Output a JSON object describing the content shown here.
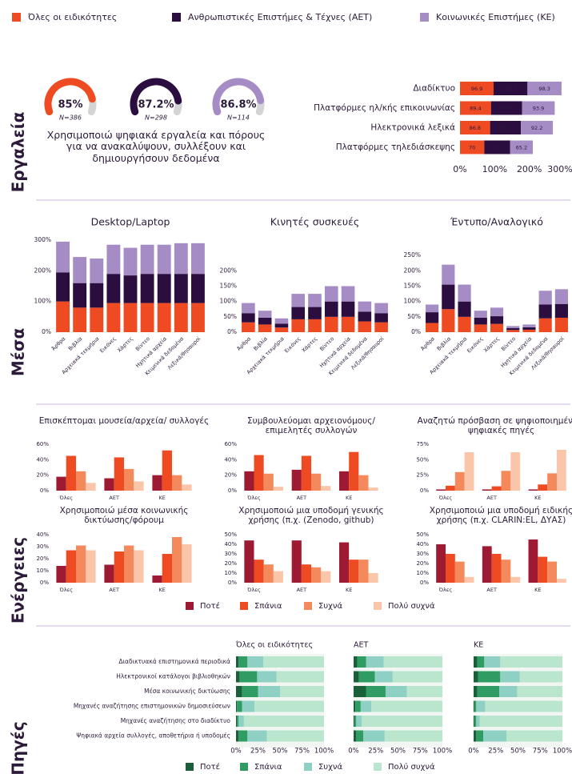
{
  "legend": [
    {
      "name": "Όλες οι ειδικότητες",
      "color": "#ef4b23"
    },
    {
      "name": "Ανθρωπιστικές Επιστήμες & Τέχνες (ΑΕΤ)",
      "color": "#2b0d40"
    },
    {
      "name": "Κοινωνικές Επιστήμες (ΚΕ)",
      "color": "#a68cc5"
    }
  ],
  "sections": [
    "Εργαλεία",
    "Μέσα",
    "Ενέργειες",
    "Πηγές"
  ],
  "frequency_legend": [
    {
      "name": "Ποτέ",
      "color": "#9e1a32"
    },
    {
      "name": "Σπάνια",
      "color": "#ef4b23"
    },
    {
      "name": "Συχνά",
      "color": "#f48a5c"
    },
    {
      "name": "Πολύ συχνά",
      "color": "#fbc5a9"
    }
  ],
  "sources_legend": [
    {
      "name": "Ποτέ",
      "color": "#1a5e3a"
    },
    {
      "name": "Σπάνια",
      "color": "#2f9d63"
    },
    {
      "name": "Συχνά",
      "color": "#8ed1c4"
    },
    {
      "name": "Πολύ συχνά",
      "color": "#b9e6cc"
    }
  ],
  "chart_data": [
    {
      "type": "gauge",
      "values": [
        85,
        87.2,
        86.8
      ],
      "value_labels": [
        "85%",
        "87.2%",
        "86.8%"
      ],
      "sample_sizes": [
        "N=386",
        "N=298",
        "N=114"
      ],
      "colors": [
        "#ef4b23",
        "#2b0d40",
        "#a68cc5"
      ],
      "ylim": [
        0,
        100
      ],
      "caption": "Χρησιμοποιώ ψηφιακά εργαλεία και πόρους για να ανακαλύψουν, συλλέξουν και δημιουργήσουν δεδομένα"
    },
    {
      "type": "stacked_hbar",
      "categories": [
        "Διαδίκτυο",
        "Πλατφόρμες ηλ/κής επικοινωνίας",
        "Ηλεκτρονικά λεξικά",
        "Πλατφόρμες τηλεδιάσκεψης"
      ],
      "series": [
        {
          "color": "#ef4b23",
          "values": [
            96.9,
            89.4,
            86.8,
            70
          ]
        },
        {
          "color": "#2b0d40",
          "values": [
            97.7,
            89.9,
            88.9,
            74.8
          ]
        },
        {
          "color": "#a68cc5",
          "values": [
            98.3,
            93.9,
            92.2,
            65.2
          ]
        }
      ],
      "xlim": [
        0,
        300
      ],
      "xticks": [
        {
          "value": 0,
          "label": "0%"
        },
        {
          "value": 100,
          "label": "100%"
        },
        {
          "value": 200,
          "label": "200%"
        },
        {
          "value": 300,
          "label": "300%"
        }
      ]
    },
    {
      "type": "stacked_column",
      "title": "Desktop/Laptop",
      "categories": [
        "Άρθρα",
        "Βιβλία",
        "Αρχειακά τεκμήρια",
        "Εικόνες",
        "Χάρτες",
        "Βίντεο",
        "Ηχητικά αρχεία",
        "Κειμενικά δεδομένα",
        "Λεξικά/θησαυροί"
      ],
      "series": [
        {
          "color": "#ef4b23",
          "values": [
            100,
            80,
            80,
            95,
            95,
            95,
            95,
            95,
            95
          ]
        },
        {
          "color": "#2b0d40",
          "values": [
            95,
            80,
            80,
            95,
            90,
            95,
            95,
            95,
            95
          ]
        },
        {
          "color": "#a68cc5",
          "values": [
            100,
            85,
            80,
            95,
            90,
            95,
            95,
            100,
            100
          ]
        }
      ],
      "ylim": [
        0,
        300
      ],
      "yticks": [
        {
          "value": 0,
          "label": "0%"
        },
        {
          "value": 100,
          "label": "100%"
        },
        {
          "value": 200,
          "label": "200%"
        },
        {
          "value": 300,
          "label": "300%"
        }
      ]
    },
    {
      "type": "stacked_column",
      "title": "Κινητές συσκευές",
      "categories": [
        "Άρθρα",
        "Βιβλία",
        "Αρχειακά τεκμήρια",
        "Εικόνες",
        "Χάρτες",
        "Βίντεο",
        "Ηχητικά αρχεία",
        "Κειμενικά δεδομένα",
        "Λεξικά/θησαυροί"
      ],
      "series": [
        {
          "color": "#ef4b23",
          "values": [
            32,
            25,
            15,
            42,
            42,
            50,
            50,
            35,
            32
          ]
        },
        {
          "color": "#2b0d40",
          "values": [
            30,
            22,
            13,
            40,
            40,
            50,
            50,
            32,
            30
          ]
        },
        {
          "color": "#a68cc5",
          "values": [
            33,
            23,
            17,
            43,
            43,
            50,
            50,
            33,
            33
          ]
        }
      ],
      "ylim": [
        0,
        300
      ],
      "yticks": [
        {
          "value": 0,
          "label": "0%"
        },
        {
          "value": 50,
          "label": "50%"
        },
        {
          "value": 100,
          "label": "100%"
        },
        {
          "value": 150,
          "label": "150%"
        },
        {
          "value": 200,
          "label": "200%"
        }
      ]
    },
    {
      "type": "stacked_column",
      "title": "Έντυπο/Αναλογικό",
      "categories": [
        "Άρθρα",
        "Βιβλία",
        "Αρχειακά τεκμήρια",
        "Εικόνες",
        "Χάρτες",
        "Βίντεο",
        "Ηχητικά αρχεία",
        "Κειμενικά δεδομένα",
        "Λεξικά/θησαυροί"
      ],
      "series": [
        {
          "color": "#ef4b23",
          "values": [
            30,
            75,
            50,
            25,
            27,
            7,
            8,
            45,
            47
          ]
        },
        {
          "color": "#2b0d40",
          "values": [
            35,
            80,
            50,
            22,
            25,
            6,
            8,
            45,
            45
          ]
        },
        {
          "color": "#a68cc5",
          "values": [
            25,
            65,
            55,
            23,
            28,
            7,
            9,
            45,
            48
          ]
        }
      ],
      "ylim": [
        0,
        300
      ],
      "yticks": [
        {
          "value": 0,
          "label": "0%"
        },
        {
          "value": 50,
          "label": "50%"
        },
        {
          "value": 100,
          "label": "100%"
        },
        {
          "value": 150,
          "label": "150%"
        },
        {
          "value": 200,
          "label": "200%"
        },
        {
          "value": 250,
          "label": "250%"
        }
      ]
    },
    {
      "type": "grouped_bar",
      "title": "Επισκέπτομαι μουσεία/αρχεία/ συλλογές",
      "categories": [
        "Όλες",
        "ΑΕΤ",
        "ΚΕ"
      ],
      "series": [
        {
          "color": "#9e1a32",
          "values": [
            18,
            16,
            20
          ]
        },
        {
          "color": "#ef4b23",
          "values": [
            45,
            43,
            52
          ]
        },
        {
          "color": "#f48a5c",
          "values": [
            25,
            28,
            20
          ]
        },
        {
          "color": "#fbc5a9",
          "values": [
            10,
            12,
            8
          ]
        }
      ],
      "ylim": [
        0,
        60
      ],
      "yticks": [
        {
          "value": 0,
          "label": "0%"
        },
        {
          "value": 20,
          "label": "20%"
        },
        {
          "value": 40,
          "label": "40%"
        },
        {
          "value": 60,
          "label": "60%"
        }
      ]
    },
    {
      "type": "grouped_bar",
      "title": "Συμβουλεύομαι αρχειονόμους/ επιμελητές συλλογών",
      "categories": [
        "Όλες",
        "ΑΕΤ",
        "ΚΕ"
      ],
      "series": [
        {
          "color": "#9e1a32",
          "values": [
            25,
            27,
            25
          ]
        },
        {
          "color": "#ef4b23",
          "values": [
            46,
            45,
            50
          ]
        },
        {
          "color": "#f48a5c",
          "values": [
            22,
            22,
            20
          ]
        },
        {
          "color": "#fbc5a9",
          "values": [
            5,
            6,
            4
          ]
        }
      ],
      "ylim": [
        0,
        60
      ],
      "yticks": [
        {
          "value": 0,
          "label": "0%"
        },
        {
          "value": 20,
          "label": "20%"
        },
        {
          "value": 40,
          "label": "40%"
        },
        {
          "value": 60,
          "label": "60%"
        }
      ]
    },
    {
      "type": "grouped_bar",
      "title": "Αναζητώ πρόσβαση σε ψηφιοποιημένες/ψηφιακές πηγές",
      "categories": [
        "Όλες",
        "ΑΕΤ",
        "ΚΕ"
      ],
      "series": [
        {
          "color": "#9e1a32",
          "values": [
            2,
            2,
            2
          ]
        },
        {
          "color": "#ef4b23",
          "values": [
            8,
            7,
            10
          ]
        },
        {
          "color": "#f48a5c",
          "values": [
            30,
            32,
            28
          ]
        },
        {
          "color": "#fbc5a9",
          "values": [
            62,
            62,
            66
          ]
        }
      ],
      "ylim": [
        0,
        75
      ],
      "yticks": [
        {
          "value": 0,
          "label": "0%"
        },
        {
          "value": 25,
          "label": "25%"
        },
        {
          "value": 50,
          "label": "50%"
        },
        {
          "value": 75,
          "label": "75%"
        }
      ]
    },
    {
      "type": "grouped_bar",
      "title": "Χρησιμοποιώ μέσα κοινωνικής δικτύωσης/φόρουμ",
      "categories": [
        "Όλες",
        "ΑΕΤ",
        "ΚΕ"
      ],
      "series": [
        {
          "color": "#9e1a32",
          "values": [
            14,
            15,
            6
          ]
        },
        {
          "color": "#ef4b23",
          "values": [
            27,
            26,
            24
          ]
        },
        {
          "color": "#f48a5c",
          "values": [
            31,
            31,
            38
          ]
        },
        {
          "color": "#fbc5a9",
          "values": [
            27,
            27,
            32
          ]
        }
      ],
      "ylim": [
        0,
        40
      ],
      "yticks": [
        {
          "value": 0,
          "label": "0%"
        },
        {
          "value": 10,
          "label": "10%"
        },
        {
          "value": 20,
          "label": "20%"
        },
        {
          "value": 30,
          "label": "30%"
        },
        {
          "value": 40,
          "label": "40%"
        }
      ]
    },
    {
      "type": "grouped_bar",
      "title": "Χρησιμοποιώ μια υποδομή γενικής χρήσης (π.χ. (Zenodo, github)",
      "categories": [
        "Όλες",
        "ΑΕΤ",
        "ΚΕ"
      ],
      "series": [
        {
          "color": "#9e1a32",
          "values": [
            44,
            44,
            42
          ]
        },
        {
          "color": "#ef4b23",
          "values": [
            24,
            19,
            24
          ]
        },
        {
          "color": "#f48a5c",
          "values": [
            19,
            16,
            24
          ]
        },
        {
          "color": "#fbc5a9",
          "values": [
            12,
            12,
            10
          ]
        }
      ],
      "ylim": [
        0,
        50
      ],
      "yticks": [
        {
          "value": 0,
          "label": "0%"
        },
        {
          "value": 10,
          "label": "10%"
        },
        {
          "value": 20,
          "label": "20%"
        },
        {
          "value": 30,
          "label": "30%"
        },
        {
          "value": 40,
          "label": "40%"
        },
        {
          "value": 50,
          "label": "50%"
        }
      ]
    },
    {
      "type": "grouped_bar",
      "title": "Χρησιμοποιώ μια υποδομή ειδικής χρήσης (π.χ. CLARIN:EL, ΔΥΑΣ)",
      "categories": [
        "Όλες",
        "ΑΕΤ",
        "ΚΕ"
      ],
      "series": [
        {
          "color": "#9e1a32",
          "values": [
            40,
            38,
            45
          ]
        },
        {
          "color": "#ef4b23",
          "values": [
            30,
            30,
            27
          ]
        },
        {
          "color": "#f48a5c",
          "values": [
            22,
            24,
            22
          ]
        },
        {
          "color": "#fbc5a9",
          "values": [
            6,
            6,
            4
          ]
        }
      ],
      "ylim": [
        0,
        50
      ],
      "yticks": [
        {
          "value": 0,
          "label": "0%"
        },
        {
          "value": 10,
          "label": "10%"
        },
        {
          "value": 20,
          "label": "20%"
        },
        {
          "value": 30,
          "label": "30%"
        },
        {
          "value": 40,
          "label": "40%"
        },
        {
          "value": 50,
          "label": "50%"
        }
      ]
    },
    {
      "type": "stacked100_hbar",
      "title": "Όλες οι ειδικότητες",
      "categories": [
        "Διαδικτυακά επιστημονικά περιοδικά",
        "Ηλεκτρονικοί κατάλογοι βιβλιοθηκών",
        "Μέσα κοινωνικής δικτύωσης",
        "Μηχανές αναζήτησης επιστημονικών δημοσιεύσεων",
        "Μηχανές αναζήτησης στο διαδίκτυο",
        "Ψηφιακά αρχεία συλλογές, αποθετήρια ή υποδομές"
      ],
      "series": [
        {
          "color": "#1a5e3a",
          "values": [
            3,
            4,
            7,
            1,
            1,
            3
          ]
        },
        {
          "color": "#2f9d63",
          "values": [
            10,
            20,
            18,
            6,
            2,
            10
          ]
        },
        {
          "color": "#8ed1c4",
          "values": [
            18,
            22,
            25,
            14,
            6,
            22
          ]
        },
        {
          "color": "#b9e6cc",
          "values": [
            69,
            54,
            50,
            79,
            91,
            65
          ]
        }
      ],
      "xlim": [
        0,
        100
      ],
      "xticks": [
        {
          "value": 0,
          "label": "0%"
        },
        {
          "value": 25,
          "label": "25%"
        },
        {
          "value": 50,
          "label": "50%"
        },
        {
          "value": 75,
          "label": "75%"
        },
        {
          "value": 100,
          "label": "100%"
        }
      ]
    },
    {
      "type": "stacked100_hbar",
      "title": "ΑΕΤ",
      "series": [
        {
          "color": "#1a5e3a",
          "values": [
            4,
            6,
            14,
            2,
            1,
            3
          ]
        },
        {
          "color": "#2f9d63",
          "values": [
            10,
            18,
            22,
            6,
            2,
            8
          ]
        },
        {
          "color": "#8ed1c4",
          "values": [
            20,
            20,
            24,
            12,
            6,
            24
          ]
        },
        {
          "color": "#b9e6cc",
          "values": [
            66,
            56,
            40,
            80,
            91,
            65
          ]
        }
      ],
      "xlim": [
        0,
        100
      ],
      "xticks": [
        {
          "value": 0,
          "label": "0%"
        },
        {
          "value": 25,
          "label": "25%"
        },
        {
          "value": 50,
          "label": "50%"
        },
        {
          "value": 75,
          "label": "75%"
        },
        {
          "value": 100,
          "label": "100%"
        }
      ]
    },
    {
      "type": "stacked100_hbar",
      "title": "ΚΕ",
      "series": [
        {
          "color": "#1a5e3a",
          "values": [
            4,
            5,
            4,
            1,
            1,
            3
          ]
        },
        {
          "color": "#2f9d63",
          "values": [
            8,
            25,
            25,
            2,
            2,
            8
          ]
        },
        {
          "color": "#8ed1c4",
          "values": [
            18,
            22,
            20,
            10,
            4,
            26
          ]
        },
        {
          "color": "#b9e6cc",
          "values": [
            70,
            48,
            51,
            87,
            93,
            63
          ]
        }
      ],
      "xlim": [
        0,
        100
      ],
      "xticks": [
        {
          "value": 0,
          "label": "0%"
        },
        {
          "value": 25,
          "label": "25%"
        },
        {
          "value": 50,
          "label": "50%"
        },
        {
          "value": 75,
          "label": "75%"
        },
        {
          "value": 100,
          "label": "100%"
        }
      ]
    }
  ]
}
